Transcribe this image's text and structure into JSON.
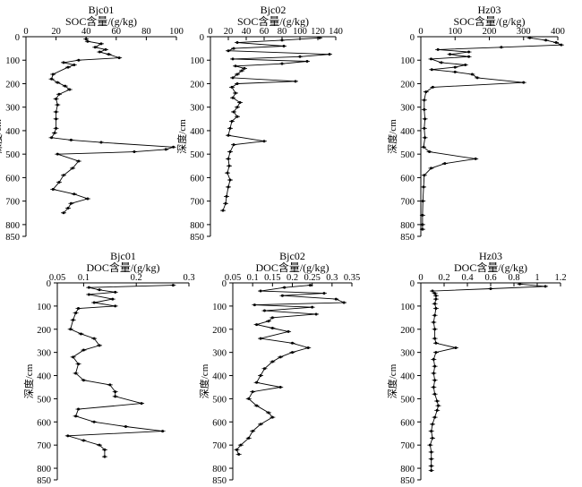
{
  "chart_data": [
    {
      "type": "line",
      "site": "Bjc01",
      "xlabel": "SOC含量/(g/kg)",
      "ylabel": "深度/cm",
      "xlim": [
        0,
        100
      ],
      "xticks": [
        "0",
        "20",
        "40",
        "60",
        "80",
        "100"
      ],
      "ylim": [
        0,
        850
      ],
      "yticks": [
        "0",
        "100",
        "200",
        "300",
        "400",
        "500",
        "600",
        "700",
        "800",
        "850"
      ],
      "points": [
        [
          40,
          10
        ],
        [
          41,
          20
        ],
        [
          50,
          30
        ],
        [
          46,
          45
        ],
        [
          53,
          55
        ],
        [
          49,
          65
        ],
        [
          55,
          75
        ],
        [
          62,
          90
        ],
        [
          35,
          100
        ],
        [
          25,
          110
        ],
        [
          32,
          120
        ],
        [
          28,
          130
        ],
        [
          18,
          160
        ],
        [
          17,
          180
        ],
        [
          21,
          195
        ],
        [
          26,
          210
        ],
        [
          29,
          225
        ],
        [
          22,
          245
        ],
        [
          20,
          265
        ],
        [
          21,
          290
        ],
        [
          20,
          320
        ],
        [
          20,
          350
        ],
        [
          20,
          390
        ],
        [
          19,
          410
        ],
        [
          17,
          430
        ],
        [
          30,
          440
        ],
        [
          50,
          450
        ],
        [
          98,
          470
        ],
        [
          93,
          480
        ],
        [
          72,
          490
        ],
        [
          21,
          500
        ],
        [
          35,
          530
        ],
        [
          31,
          560
        ],
        [
          25,
          590
        ],
        [
          22,
          620
        ],
        [
          18,
          650
        ],
        [
          32,
          670
        ],
        [
          41,
          690
        ],
        [
          30,
          710
        ],
        [
          28,
          730
        ],
        [
          25,
          750
        ]
      ]
    },
    {
      "type": "line",
      "site": "Bjc02",
      "xlabel": "SOC含量/(g/kg)",
      "ylabel": "深度/cm",
      "xlim": [
        0,
        140
      ],
      "xticks": [
        "0",
        "20",
        "40",
        "60",
        "80",
        "100",
        "120",
        "140"
      ],
      "ylim": [
        0,
        850
      ],
      "yticks": [
        "0",
        "100",
        "200",
        "300",
        "400",
        "500",
        "600",
        "700",
        "800",
        "850"
      ],
      "points": [
        [
          122,
          5
        ],
        [
          80,
          15
        ],
        [
          30,
          25
        ],
        [
          82,
          40
        ],
        [
          26,
          50
        ],
        [
          20,
          60
        ],
        [
          133,
          75
        ],
        [
          100,
          85
        ],
        [
          25,
          95
        ],
        [
          108,
          105
        ],
        [
          80,
          115
        ],
        [
          28,
          125
        ],
        [
          38,
          135
        ],
        [
          35,
          145
        ],
        [
          30,
          160
        ],
        [
          25,
          175
        ],
        [
          95,
          190
        ],
        [
          30,
          200
        ],
        [
          24,
          215
        ],
        [
          28,
          240
        ],
        [
          25,
          260
        ],
        [
          33,
          280
        ],
        [
          30,
          300
        ],
        [
          26,
          320
        ],
        [
          30,
          340
        ],
        [
          24,
          360
        ],
        [
          22,
          390
        ],
        [
          20,
          420
        ],
        [
          60,
          445
        ],
        [
          26,
          460
        ],
        [
          22,
          490
        ],
        [
          20,
          520
        ],
        [
          21,
          550
        ],
        [
          19,
          580
        ],
        [
          22,
          610
        ],
        [
          20,
          640
        ],
        [
          18,
          680
        ],
        [
          17,
          710
        ],
        [
          14,
          740
        ]
      ]
    },
    {
      "type": "line",
      "site": "Hz03",
      "xlabel": "SOC含量/(g/kg)",
      "ylabel": "深度/cm",
      "xlim": [
        0,
        400
      ],
      "xticks": [
        "0",
        "100",
        "200",
        "300",
        "400"
      ],
      "ylim": [
        0,
        850
      ],
      "yticks": [
        "0",
        "100",
        "200",
        "300",
        "400",
        "500",
        "600",
        "700",
        "800",
        "850"
      ],
      "points": [
        [
          318,
          5
        ],
        [
          365,
          15
        ],
        [
          395,
          25
        ],
        [
          410,
          35
        ],
        [
          235,
          45
        ],
        [
          50,
          55
        ],
        [
          140,
          65
        ],
        [
          85,
          75
        ],
        [
          140,
          85
        ],
        [
          30,
          95
        ],
        [
          60,
          110
        ],
        [
          130,
          120
        ],
        [
          100,
          130
        ],
        [
          32,
          140
        ],
        [
          100,
          150
        ],
        [
          150,
          160
        ],
        [
          165,
          175
        ],
        [
          300,
          195
        ],
        [
          35,
          215
        ],
        [
          15,
          235
        ],
        [
          10,
          270
        ],
        [
          10,
          310
        ],
        [
          12,
          350
        ],
        [
          10,
          390
        ],
        [
          12,
          430
        ],
        [
          8,
          470
        ],
        [
          25,
          490
        ],
        [
          160,
          520
        ],
        [
          70,
          540
        ],
        [
          30,
          560
        ],
        [
          10,
          590
        ],
        [
          8,
          640
        ],
        [
          6,
          700
        ],
        [
          5,
          760
        ],
        [
          5,
          800
        ],
        [
          5,
          820
        ]
      ]
    },
    {
      "type": "line",
      "site": "Bjc01",
      "xlabel": "DOC含量/(g/kg)",
      "ylabel": "深度/cm",
      "xlim": [
        0.05,
        0.3
      ],
      "xticks": [
        "0.05",
        "0.1",
        "0.2",
        "0.3"
      ],
      "ylim": [
        0,
        850
      ],
      "yticks": [
        "0",
        "100",
        "200",
        "300",
        "400",
        "500",
        "600",
        "700",
        "800",
        "850"
      ],
      "points": [
        [
          0.27,
          10
        ],
        [
          0.11,
          20
        ],
        [
          0.13,
          30
        ],
        [
          0.16,
          40
        ],
        [
          0.11,
          50
        ],
        [
          0.155,
          70
        ],
        [
          0.12,
          85
        ],
        [
          0.16,
          100
        ],
        [
          0.09,
          110
        ],
        [
          0.085,
          130
        ],
        [
          0.08,
          160
        ],
        [
          0.075,
          200
        ],
        [
          0.095,
          220
        ],
        [
          0.12,
          240
        ],
        [
          0.13,
          270
        ],
        [
          0.1,
          290
        ],
        [
          0.08,
          320
        ],
        [
          0.09,
          350
        ],
        [
          0.085,
          390
        ],
        [
          0.1,
          420
        ],
        [
          0.15,
          440
        ],
        [
          0.16,
          470
        ],
        [
          0.16,
          490
        ],
        [
          0.21,
          520
        ],
        [
          0.09,
          545
        ],
        [
          0.085,
          575
        ],
        [
          0.12,
          600
        ],
        [
          0.18,
          620
        ],
        [
          0.25,
          640
        ],
        [
          0.07,
          660
        ],
        [
          0.1,
          680
        ],
        [
          0.13,
          700
        ],
        [
          0.14,
          720
        ],
        [
          0.14,
          750
        ]
      ]
    },
    {
      "type": "line",
      "site": "Bjc02",
      "xlabel": "DOC含量/(g/kg)",
      "ylabel": "深度/cm",
      "xlim": [
        0.05,
        0.35
      ],
      "xticks": [
        "0.05",
        "0.1",
        "0.15",
        "0.2",
        "0.25",
        "0.3",
        "0.35"
      ],
      "ylim": [
        0,
        850
      ],
      "yticks": [
        "0",
        "100",
        "200",
        "300",
        "400",
        "500",
        "600",
        "700",
        "800",
        "850"
      ],
      "points": [
        [
          0.245,
          10
        ],
        [
          0.18,
          20
        ],
        [
          0.12,
          35
        ],
        [
          0.28,
          45
        ],
        [
          0.175,
          55
        ],
        [
          0.31,
          70
        ],
        [
          0.33,
          85
        ],
        [
          0.105,
          95
        ],
        [
          0.25,
          105
        ],
        [
          0.13,
          120
        ],
        [
          0.26,
          135
        ],
        [
          0.15,
          150
        ],
        [
          0.14,
          165
        ],
        [
          0.11,
          180
        ],
        [
          0.15,
          195
        ],
        [
          0.19,
          210
        ],
        [
          0.12,
          240
        ],
        [
          0.2,
          260
        ],
        [
          0.24,
          280
        ],
        [
          0.2,
          300
        ],
        [
          0.17,
          320
        ],
        [
          0.15,
          340
        ],
        [
          0.13,
          370
        ],
        [
          0.12,
          400
        ],
        [
          0.11,
          430
        ],
        [
          0.17,
          450
        ],
        [
          0.1,
          470
        ],
        [
          0.09,
          500
        ],
        [
          0.11,
          530
        ],
        [
          0.14,
          560
        ],
        [
          0.15,
          580
        ],
        [
          0.12,
          610
        ],
        [
          0.1,
          640
        ],
        [
          0.09,
          670
        ],
        [
          0.07,
          700
        ],
        [
          0.06,
          720
        ],
        [
          0.065,
          740
        ]
      ]
    },
    {
      "type": "line",
      "site": "Hz03",
      "xlabel": "DOC含量/(g/kg)",
      "ylabel": "深度/cm",
      "xlim": [
        0,
        1.2
      ],
      "xticks": [
        "0",
        "0.2",
        "0.4",
        "0.6",
        "0.8",
        "1",
        "1.2"
      ],
      "ylim": [
        0,
        850
      ],
      "yticks": [
        "0",
        "100",
        "200",
        "300",
        "400",
        "500",
        "600",
        "700",
        "800",
        "850"
      ],
      "points": [
        [
          0.85,
          5
        ],
        [
          1.07,
          15
        ],
        [
          0.6,
          25
        ],
        [
          0.1,
          35
        ],
        [
          0.12,
          45
        ],
        [
          0.13,
          55
        ],
        [
          0.13,
          70
        ],
        [
          0.12,
          90
        ],
        [
          0.13,
          110
        ],
        [
          0.12,
          140
        ],
        [
          0.11,
          170
        ],
        [
          0.12,
          200
        ],
        [
          0.12,
          240
        ],
        [
          0.13,
          260
        ],
        [
          0.3,
          280
        ],
        [
          0.13,
          300
        ],
        [
          0.11,
          330
        ],
        [
          0.12,
          360
        ],
        [
          0.11,
          390
        ],
        [
          0.12,
          420
        ],
        [
          0.11,
          450
        ],
        [
          0.12,
          480
        ],
        [
          0.14,
          510
        ],
        [
          0.15,
          530
        ],
        [
          0.14,
          550
        ],
        [
          0.12,
          580
        ],
        [
          0.1,
          610
        ],
        [
          0.09,
          640
        ],
        [
          0.1,
          670
        ],
        [
          0.08,
          700
        ],
        [
          0.09,
          730
        ],
        [
          0.09,
          760
        ],
        [
          0.09,
          790
        ],
        [
          0.09,
          810
        ]
      ]
    }
  ]
}
